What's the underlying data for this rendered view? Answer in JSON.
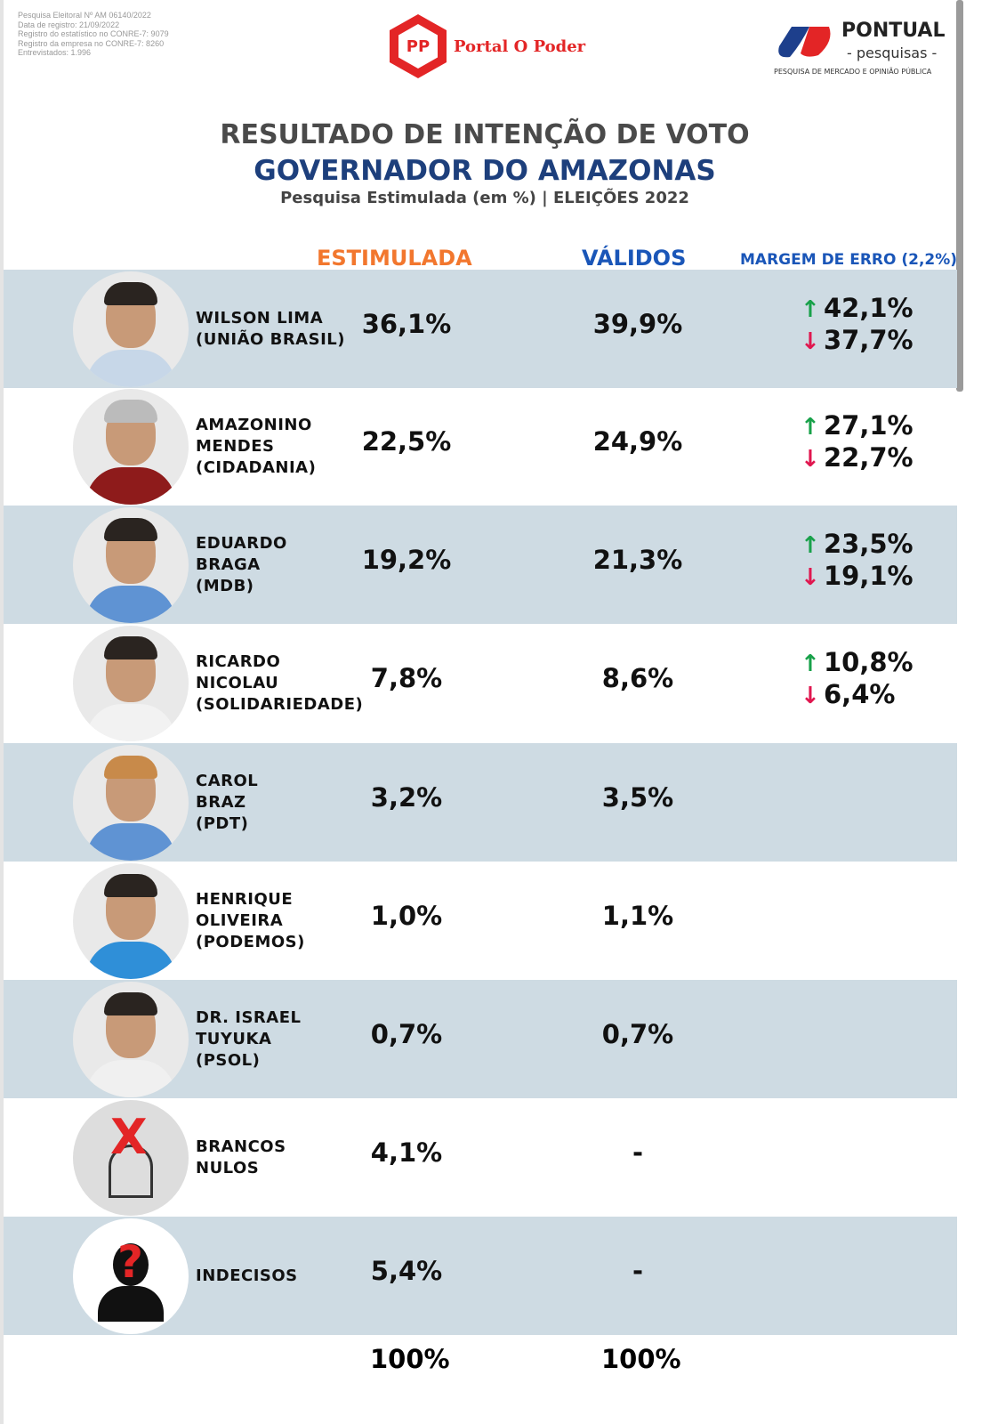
{
  "registration": [
    "Pesquisa Eleitoral Nº AM 06140/2022",
    "Data de registro: 21/09/2022",
    "Registro do estatístico no CONRE-7: 9079",
    "Registro da empresa no CONRE-7: 8260",
    "Entrevistados: 1.996"
  ],
  "portal": {
    "name": "Portal O Poder",
    "mark": "PP"
  },
  "pontual": {
    "name": "PONTUAL",
    "sub": "- pesquisas -",
    "tagline": "PESQUISA DE MERCADO E OPINIÃO PÚBLICA"
  },
  "title": {
    "line1": "RESULTADO DE INTENÇÃO DE VOTO",
    "line2": "GOVERNADOR DO AMAZONAS",
    "line3": "Pesquisa Estimulada (em %) | ELEIÇÕES 2022"
  },
  "headers": {
    "estimulada": "ESTIMULADA",
    "validos": "VÁLIDOS",
    "margem": "MARGEM DE ERRO (2,2%)"
  },
  "colors": {
    "estimulada": "#f2772e",
    "validos": "#1a56b8",
    "up": "#18a14a",
    "down": "#e0174f",
    "row_alt": "#cedbe3"
  },
  "rows": [
    {
      "name": [
        "WILSON LIMA",
        "(UNIÃO BRASIL)"
      ],
      "est": "36,1%",
      "val": "39,9%",
      "up": "42,1%",
      "down": "37,7%"
    },
    {
      "name": [
        "AMAZONINO",
        "MENDES",
        "(CIDADANIA)"
      ],
      "est": "22,5%",
      "val": "24,9%",
      "up": "27,1%",
      "down": "22,7%"
    },
    {
      "name": [
        "EDUARDO",
        "BRAGA",
        "(MDB)"
      ],
      "est": "19,2%",
      "val": "21,3%",
      "up": "23,5%",
      "down": "19,1%"
    },
    {
      "name": [
        "RICARDO",
        "NICOLAU",
        "(SOLIDARIEDADE)"
      ],
      "est": "7,8%",
      "val": "8,6%",
      "up": "10,8%",
      "down": "6,4%"
    },
    {
      "name": [
        "CAROL",
        "BRAZ",
        "(PDT)"
      ],
      "est": "3,2%",
      "val": "3,5%"
    },
    {
      "name": [
        "HENRIQUE",
        "OLIVEIRA",
        "(PODEMOS)"
      ],
      "est": "1,0%",
      "val": "1,1%"
    },
    {
      "name": [
        "DR. ISRAEL",
        "TUYUKA",
        "(PSOL)"
      ],
      "est": "0,7%",
      "val": "0,7%"
    },
    {
      "name": [
        "BRANCOS",
        "NULOS"
      ],
      "est": "4,1%",
      "val": "-"
    },
    {
      "name": [
        "INDECISOS"
      ],
      "est": "5,4%",
      "val": "-"
    }
  ],
  "totals": {
    "est": "100%",
    "val": "100%"
  }
}
